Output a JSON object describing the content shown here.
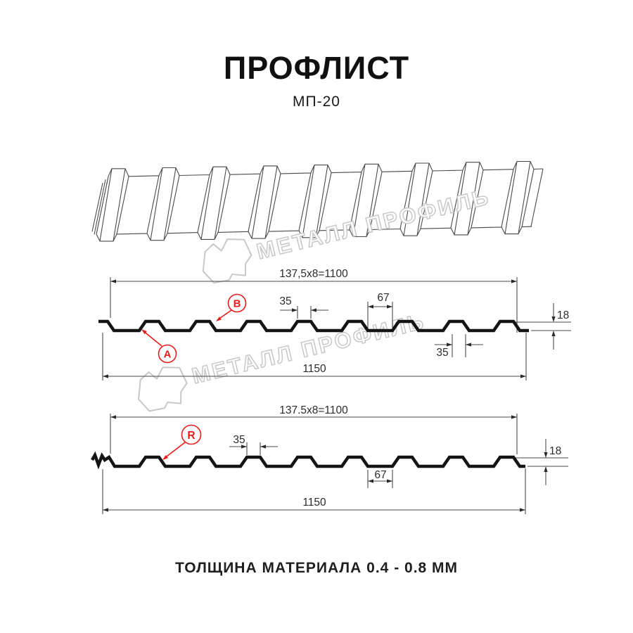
{
  "header": {
    "title": "ПРОФЛИСТ",
    "subtitle": "МП-20"
  },
  "footer": {
    "text": "ТОЛЩИНА МАТЕРИАЛА 0.4 - 0.8 ММ"
  },
  "watermark": {
    "brand": "МЕТАЛЛ ПРОФИЛЬ"
  },
  "colors": {
    "accent_red": "#e81c1c",
    "line": "#4a4a4a",
    "profile": "#141414",
    "watermark_gray": "#c8c8c8"
  },
  "section_top": {
    "dim_total": "137,5x8=1100",
    "dim_rib_top": "35",
    "dim_valley": "67",
    "dim_rib_bottom": "35",
    "dim_height": "18",
    "dim_overall": "1150",
    "marker_b": "B",
    "marker_a": "A"
  },
  "section_bottom": {
    "dim_total": "137.5x8=1100",
    "dim_rib_top": "35",
    "dim_valley": "67",
    "dim_height": "18",
    "dim_overall": "1150",
    "marker_r": "R"
  }
}
